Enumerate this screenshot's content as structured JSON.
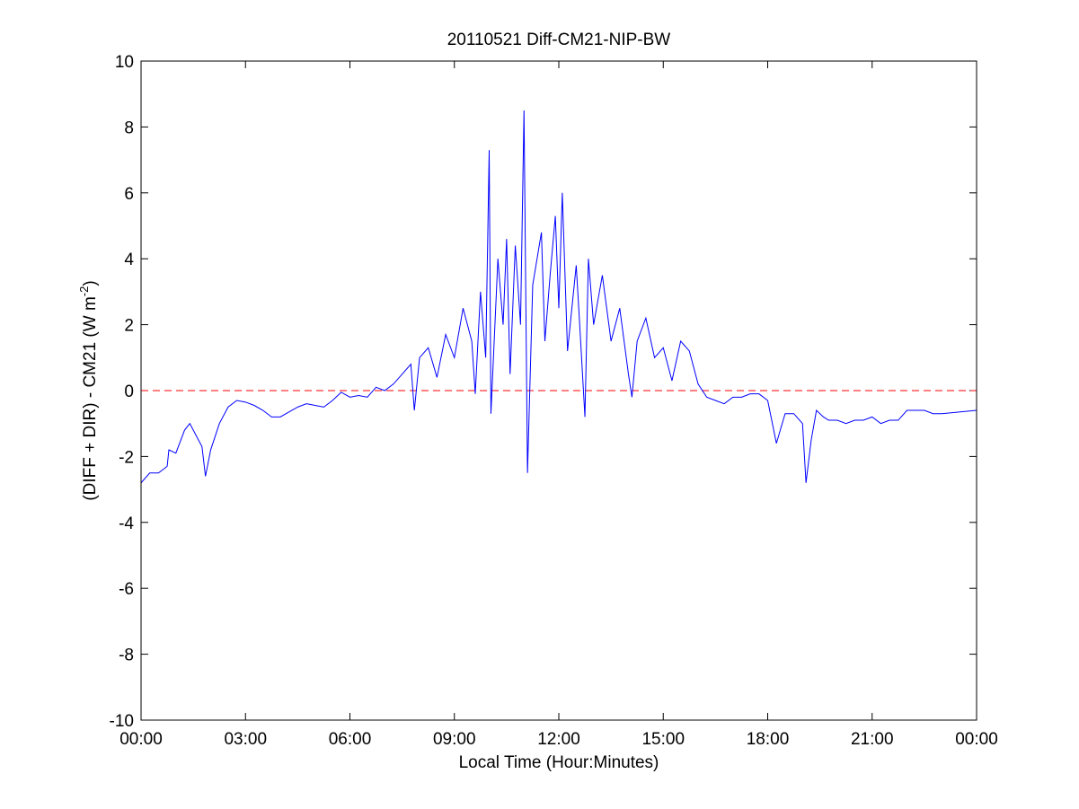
{
  "chart_data": {
    "type": "line",
    "title": "20110521 Diff-CM21-NIP-BW",
    "xlabel": "Local Time (Hour:Minutes)",
    "ylabel": {
      "text": "(DIFF + DIR) - CM21 (W m",
      "sup": "-2",
      "end": ")"
    },
    "x": [
      0,
      0.25,
      0.5,
      0.75,
      0.8,
      1.0,
      1.25,
      1.4,
      1.6,
      1.75,
      1.85,
      2.0,
      2.25,
      2.5,
      2.75,
      3.0,
      3.25,
      3.5,
      3.75,
      4.0,
      4.25,
      4.5,
      4.75,
      5.0,
      5.25,
      5.5,
      5.75,
      6.0,
      6.25,
      6.5,
      6.75,
      7.0,
      7.25,
      7.5,
      7.75,
      7.85,
      8.0,
      8.25,
      8.5,
      8.75,
      9.0,
      9.25,
      9.5,
      9.6,
      9.75,
      9.9,
      10.0,
      10.05,
      10.25,
      10.4,
      10.5,
      10.6,
      10.75,
      10.9,
      11.0,
      11.1,
      11.25,
      11.5,
      11.6,
      11.75,
      11.9,
      12.0,
      12.1,
      12.25,
      12.5,
      12.6,
      12.75,
      12.85,
      13.0,
      13.25,
      13.5,
      13.75,
      14.0,
      14.1,
      14.25,
      14.5,
      14.75,
      15.0,
      15.25,
      15.5,
      15.75,
      16.0,
      16.25,
      16.5,
      16.75,
      17.0,
      17.25,
      17.5,
      17.75,
      18.0,
      18.25,
      18.5,
      18.75,
      19.0,
      19.1,
      19.25,
      19.4,
      19.6,
      19.75,
      20.0,
      20.25,
      20.5,
      20.75,
      21.0,
      21.25,
      21.5,
      21.75,
      22.0,
      22.25,
      22.5,
      22.75,
      23.0,
      23.5,
      24.0
    ],
    "series": [
      {
        "name": "Diff-CM21-NIP-BW",
        "color": "#0000ff",
        "values": [
          -2.8,
          -2.5,
          -2.5,
          -2.3,
          -1.8,
          -1.9,
          -1.2,
          -1.0,
          -1.4,
          -1.7,
          -2.6,
          -1.8,
          -1.0,
          -0.5,
          -0.3,
          -0.35,
          -0.45,
          -0.6,
          -0.8,
          -0.8,
          -0.65,
          -0.5,
          -0.4,
          -0.45,
          -0.5,
          -0.3,
          -0.05,
          -0.2,
          -0.15,
          -0.2,
          0.1,
          0.0,
          0.2,
          0.5,
          0.8,
          -0.6,
          1.0,
          1.3,
          0.4,
          1.7,
          1.0,
          2.5,
          1.5,
          -0.1,
          3.0,
          1.0,
          7.3,
          -0.7,
          4.0,
          2.0,
          4.6,
          0.5,
          4.4,
          2.0,
          8.5,
          -2.5,
          3.2,
          4.8,
          1.5,
          3.5,
          5.3,
          2.5,
          6.0,
          1.2,
          3.8,
          2.0,
          -0.8,
          4.0,
          2.0,
          3.5,
          1.5,
          2.5,
          0.5,
          -0.2,
          1.5,
          2.2,
          1.0,
          1.3,
          0.3,
          1.5,
          1.2,
          0.2,
          -0.2,
          -0.3,
          -0.4,
          -0.2,
          -0.2,
          -0.1,
          -0.1,
          -0.3,
          -1.6,
          -0.7,
          -0.7,
          -1.0,
          -2.8,
          -1.5,
          -0.6,
          -0.8,
          -0.9,
          -0.9,
          -1.0,
          -0.9,
          -0.9,
          -0.8,
          -1.0,
          -0.9,
          -0.9,
          -0.6,
          -0.6,
          -0.6,
          -0.7,
          -0.7,
          -0.65,
          -0.6
        ]
      }
    ],
    "xlim": [
      0,
      24
    ],
    "xticks": [
      {
        "value": 0,
        "label": "00:00"
      },
      {
        "value": 3,
        "label": "03:00"
      },
      {
        "value": 6,
        "label": "06:00"
      },
      {
        "value": 9,
        "label": "09:00"
      },
      {
        "value": 12,
        "label": "12:00"
      },
      {
        "value": 15,
        "label": "15:00"
      },
      {
        "value": 18,
        "label": "18:00"
      },
      {
        "value": 21,
        "label": "21:00"
      },
      {
        "value": 24,
        "label": "00:00"
      }
    ],
    "ylim": [
      -10,
      10
    ],
    "yticks": [
      -10,
      -8,
      -6,
      -4,
      -2,
      0,
      2,
      4,
      6,
      8,
      10
    ],
    "hline": {
      "value": 0,
      "color": "#ff0000"
    },
    "grid": false
  }
}
